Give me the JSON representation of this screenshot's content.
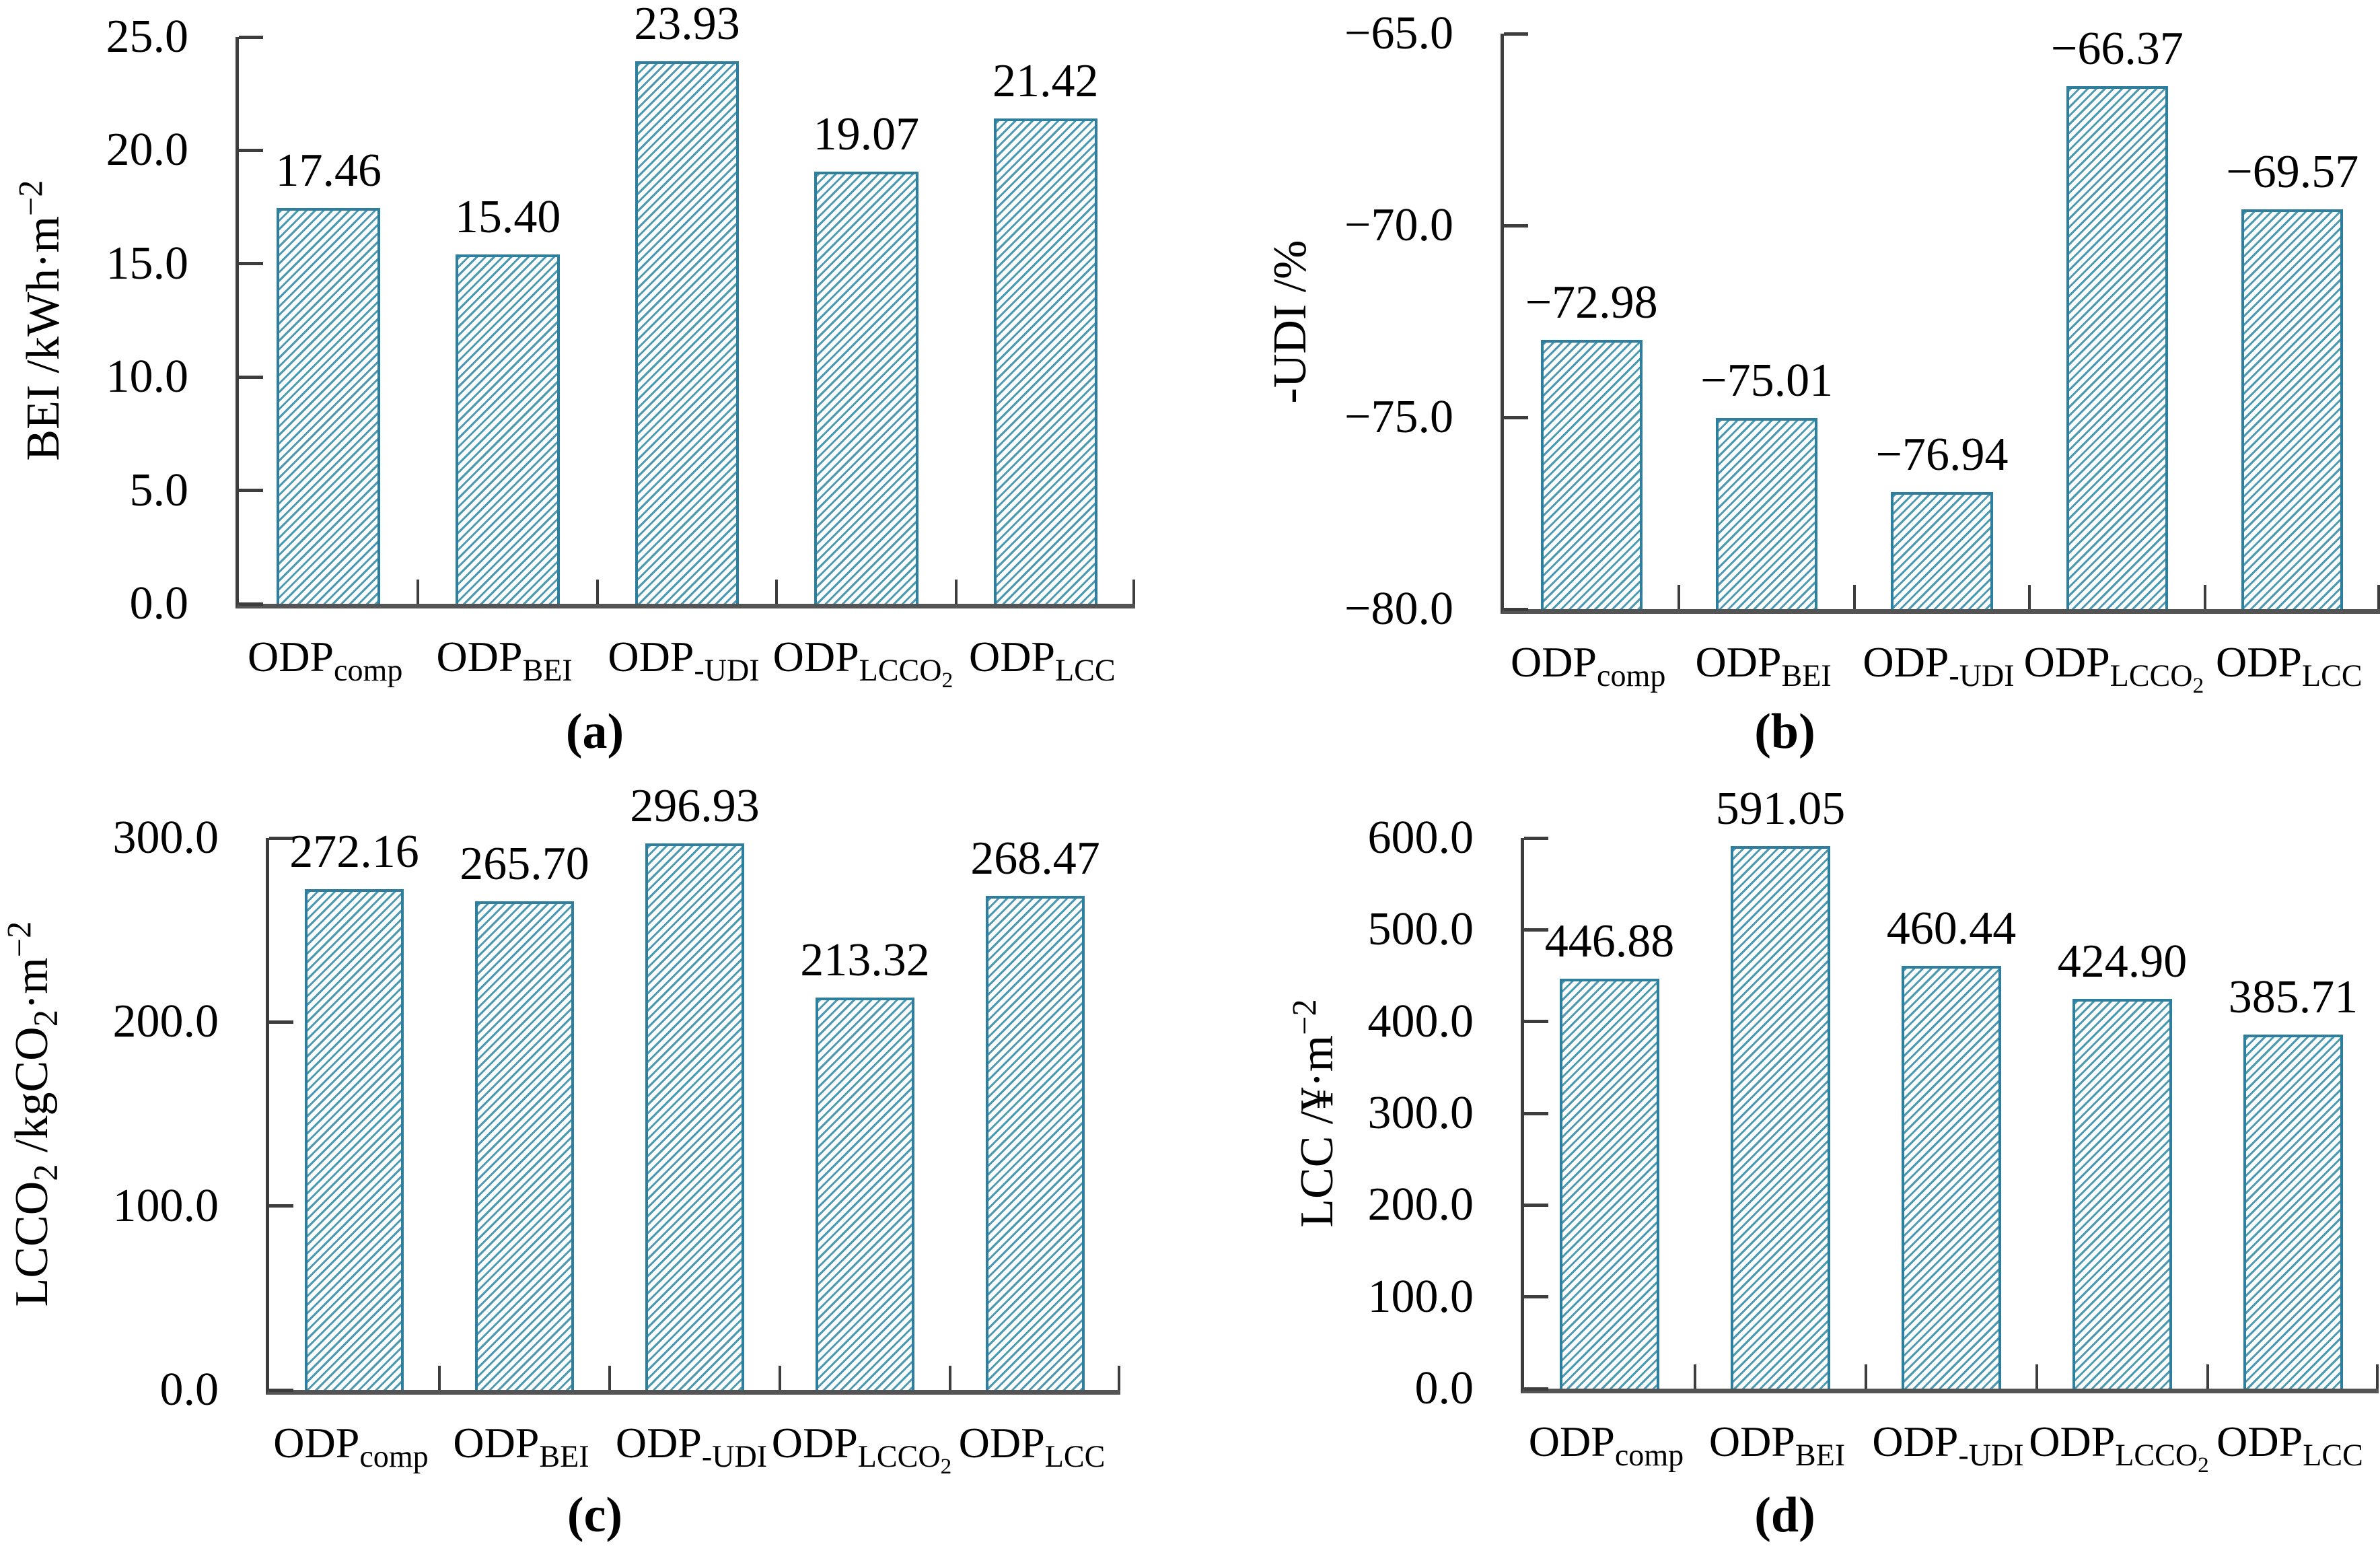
{
  "style": {
    "bar_stripe_color": "#4899b3",
    "bar_border_color": "#2e7f9e",
    "axis_color": "#3d3d3d",
    "baseline_color": "#545454",
    "background": "#ffffff",
    "text_color": "#000000"
  },
  "chart_data": [
    {
      "id": "a",
      "type": "bar",
      "panel_letter": "(a)",
      "ylabel": "BEI /kWh·m^{−2}",
      "categories": [
        {
          "main": "ODP",
          "sub": "comp"
        },
        {
          "main": "ODP",
          "sub": "BEI"
        },
        {
          "main": "ODP",
          "sub": "-UDI"
        },
        {
          "main": "ODP",
          "sub": "LCCO_{2}"
        },
        {
          "main": "ODP",
          "sub": "LCC"
        }
      ],
      "values": [
        17.46,
        15.4,
        23.93,
        19.07,
        21.42
      ],
      "data_labels": [
        "17.46",
        "15.40",
        "23.93",
        "19.07",
        "21.42"
      ],
      "ylim": [
        0,
        25
      ],
      "yticks": [
        {
          "v": 25,
          "label": "25.0"
        },
        {
          "v": 20,
          "label": "20.0"
        },
        {
          "v": 15,
          "label": "15.0"
        },
        {
          "v": 10,
          "label": "10.0"
        },
        {
          "v": 5,
          "label": "5.0"
        },
        {
          "v": 0,
          "label": "0.0"
        }
      ],
      "grid": false,
      "legend": null
    },
    {
      "id": "b",
      "type": "bar",
      "panel_letter": "(b)",
      "ylabel": "-UDI /%",
      "categories": [
        {
          "main": "ODP",
          "sub": "comp"
        },
        {
          "main": "ODP",
          "sub": "BEI"
        },
        {
          "main": "ODP",
          "sub": "-UDI"
        },
        {
          "main": "ODP",
          "sub": "LCCO_{2}"
        },
        {
          "main": "ODP",
          "sub": "LCC"
        }
      ],
      "values": [
        -72.98,
        -75.01,
        -76.94,
        -66.37,
        -69.57
      ],
      "data_labels": [
        "−72.98",
        "−75.01",
        "−76.94",
        "−66.37",
        "−69.57"
      ],
      "ylim": [
        -80,
        -65
      ],
      "yticks": [
        {
          "v": -65,
          "label": "−65.0"
        },
        {
          "v": -70,
          "label": "−70.0"
        },
        {
          "v": -75,
          "label": "−75.0"
        },
        {
          "v": -80,
          "label": "−80.0"
        }
      ],
      "grid": false,
      "legend": null
    },
    {
      "id": "c",
      "type": "bar",
      "panel_letter": "(c)",
      "ylabel": "LCCO_{2} /kgCO_{2}·m^{−2}",
      "categories": [
        {
          "main": "ODP",
          "sub": "comp"
        },
        {
          "main": "ODP",
          "sub": "BEI"
        },
        {
          "main": "ODP",
          "sub": "-UDI"
        },
        {
          "main": "ODP",
          "sub": "LCCO_{2}"
        },
        {
          "main": "ODP",
          "sub": "LCC"
        }
      ],
      "values": [
        272.16,
        265.7,
        296.93,
        213.32,
        268.47
      ],
      "data_labels": [
        "272.16",
        "265.70",
        "296.93",
        "213.32",
        "268.47"
      ],
      "ylim": [
        0,
        300
      ],
      "yticks": [
        {
          "v": 300,
          "label": "300.0"
        },
        {
          "v": 200,
          "label": "200.0"
        },
        {
          "v": 100,
          "label": "100.0"
        },
        {
          "v": 0,
          "label": "0.0"
        }
      ],
      "grid": false,
      "legend": null
    },
    {
      "id": "d",
      "type": "bar",
      "panel_letter": "(d)",
      "ylabel": "LCC /¥·m^{−2}",
      "categories": [
        {
          "main": "ODP",
          "sub": "comp"
        },
        {
          "main": "ODP",
          "sub": "BEI"
        },
        {
          "main": "ODP",
          "sub": "-UDI"
        },
        {
          "main": "ODP",
          "sub": "LCCO_{2}"
        },
        {
          "main": "ODP",
          "sub": "LCC"
        }
      ],
      "values": [
        446.88,
        591.05,
        460.44,
        424.9,
        385.71
      ],
      "data_labels": [
        "446.88",
        "591.05",
        "460.44",
        "424.90",
        "385.71"
      ],
      "ylim": [
        0,
        600
      ],
      "yticks": [
        {
          "v": 600,
          "label": "600.0"
        },
        {
          "v": 500,
          "label": "500.0"
        },
        {
          "v": 400,
          "label": "400.0"
        },
        {
          "v": 300,
          "label": "300.0"
        },
        {
          "v": 200,
          "label": "200.0"
        },
        {
          "v": 100,
          "label": "100.0"
        },
        {
          "v": 0,
          "label": "0.0"
        }
      ],
      "grid": false,
      "legend": null
    }
  ]
}
